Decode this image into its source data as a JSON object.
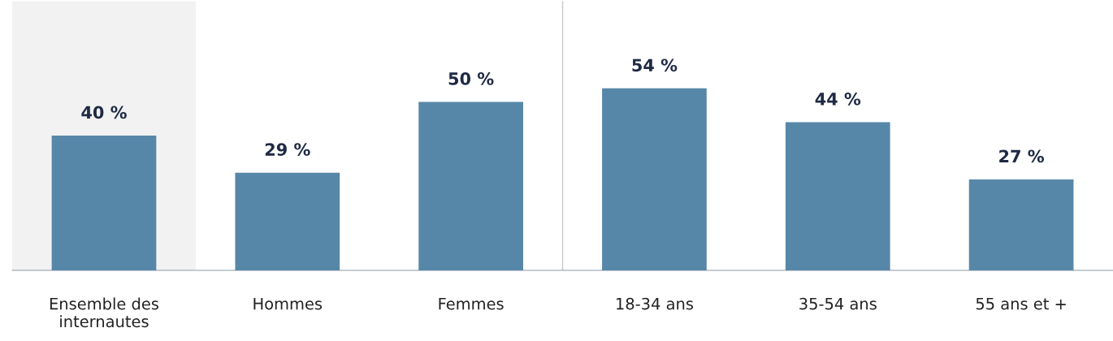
{
  "chart_data": {
    "type": "bar",
    "categories": [
      "Ensemble des\ninternautes",
      "Hommes",
      "Femmes",
      "18-34 ans",
      "35-54 ans",
      "55 ans et +"
    ],
    "values": [
      40,
      29,
      50,
      54,
      44,
      27
    ],
    "value_labels": [
      "40 %",
      "29 %",
      "50 %",
      "54 %",
      "44 %",
      "27 %"
    ],
    "color": "#5787a8",
    "bands": [
      {
        "axis": "x",
        "from": "Ensemble des\ninternautes",
        "to": "Ensemble des\ninternautes",
        "color": "#f2f2f2"
      }
    ],
    "grid": false,
    "legend": false
  }
}
